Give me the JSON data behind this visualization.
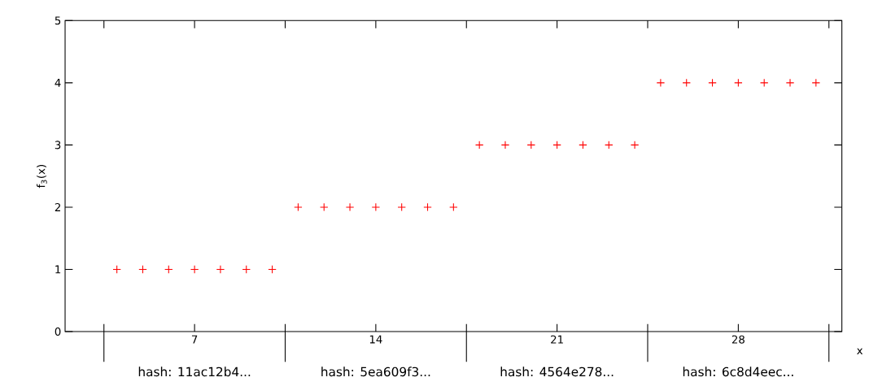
{
  "chart_data": {
    "type": "scatter",
    "x": [
      4,
      5,
      6,
      7,
      8,
      9,
      10,
      11,
      12,
      13,
      14,
      15,
      16,
      17,
      18,
      19,
      20,
      21,
      22,
      23,
      24,
      25,
      26,
      27,
      28,
      29,
      30,
      31
    ],
    "values": [
      1,
      1,
      1,
      1,
      1,
      1,
      1,
      2,
      2,
      2,
      2,
      2,
      2,
      2,
      3,
      3,
      3,
      3,
      3,
      3,
      3,
      4,
      4,
      4,
      4,
      4,
      4,
      4
    ],
    "color": "#ff0000",
    "marker": "cross",
    "xlabel": "x",
    "ylabel": "f$_{3}$(x)",
    "xlim": [
      2,
      32
    ],
    "ylim": [
      0,
      5
    ],
    "xticks": [
      {
        "value": 3.5,
        "label": null
      },
      7,
      {
        "value": 10.5,
        "label": null
      },
      14,
      {
        "value": 17.5,
        "label": null
      },
      21,
      {
        "value": 24.5,
        "label": null
      },
      28,
      {
        "value": 31.5,
        "label": null
      }
    ],
    "yticks": [
      0,
      1,
      2,
      3,
      4,
      5
    ],
    "annotations": [
      "hash: 11ac12b4...",
      "hash: 5ea609f3...",
      "hash: 4564e278...",
      "hash: 6c8d4eec..."
    ]
  }
}
